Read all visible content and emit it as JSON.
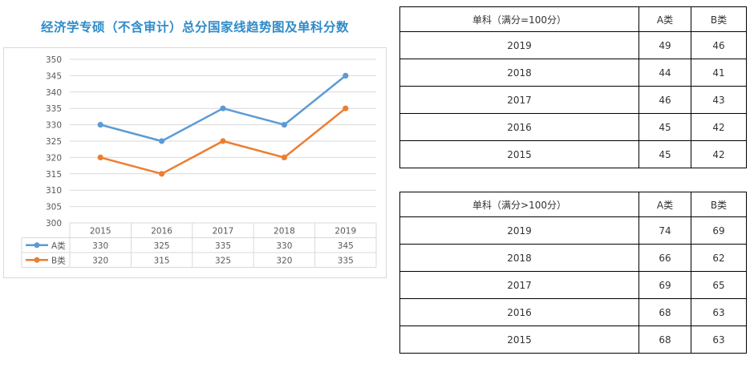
{
  "title": "经济学专硕（不含审计）总分国家线趋势图及单科分数",
  "chart_data": {
    "type": "line",
    "title": "",
    "categories": [
      "2015",
      "2016",
      "2017",
      "2018",
      "2019"
    ],
    "series": [
      {
        "name": "A类",
        "values": [
          330,
          325,
          335,
          330,
          345
        ],
        "color": "#5b9bd5"
      },
      {
        "name": "B类",
        "values": [
          320,
          315,
          325,
          320,
          335
        ],
        "color": "#ed7d31"
      }
    ],
    "ylim": [
      300,
      350
    ],
    "yticks": [
      300,
      305,
      310,
      315,
      320,
      325,
      330,
      335,
      340,
      345,
      350
    ],
    "grid": true,
    "legend": "data-table-below"
  },
  "tables": [
    {
      "headers": [
        "单科（满分=100分）",
        "A类",
        "B类"
      ],
      "rows": [
        [
          "2019",
          "49",
          "46"
        ],
        [
          "2018",
          "44",
          "41"
        ],
        [
          "2017",
          "46",
          "43"
        ],
        [
          "2016",
          "45",
          "42"
        ],
        [
          "2015",
          "45",
          "42"
        ]
      ]
    },
    {
      "headers": [
        "单科（满分>100分）",
        "A类",
        "B类"
      ],
      "rows": [
        [
          "2019",
          "74",
          "69"
        ],
        [
          "2018",
          "66",
          "62"
        ],
        [
          "2017",
          "69",
          "65"
        ],
        [
          "2016",
          "68",
          "63"
        ],
        [
          "2015",
          "68",
          "63"
        ]
      ]
    }
  ]
}
